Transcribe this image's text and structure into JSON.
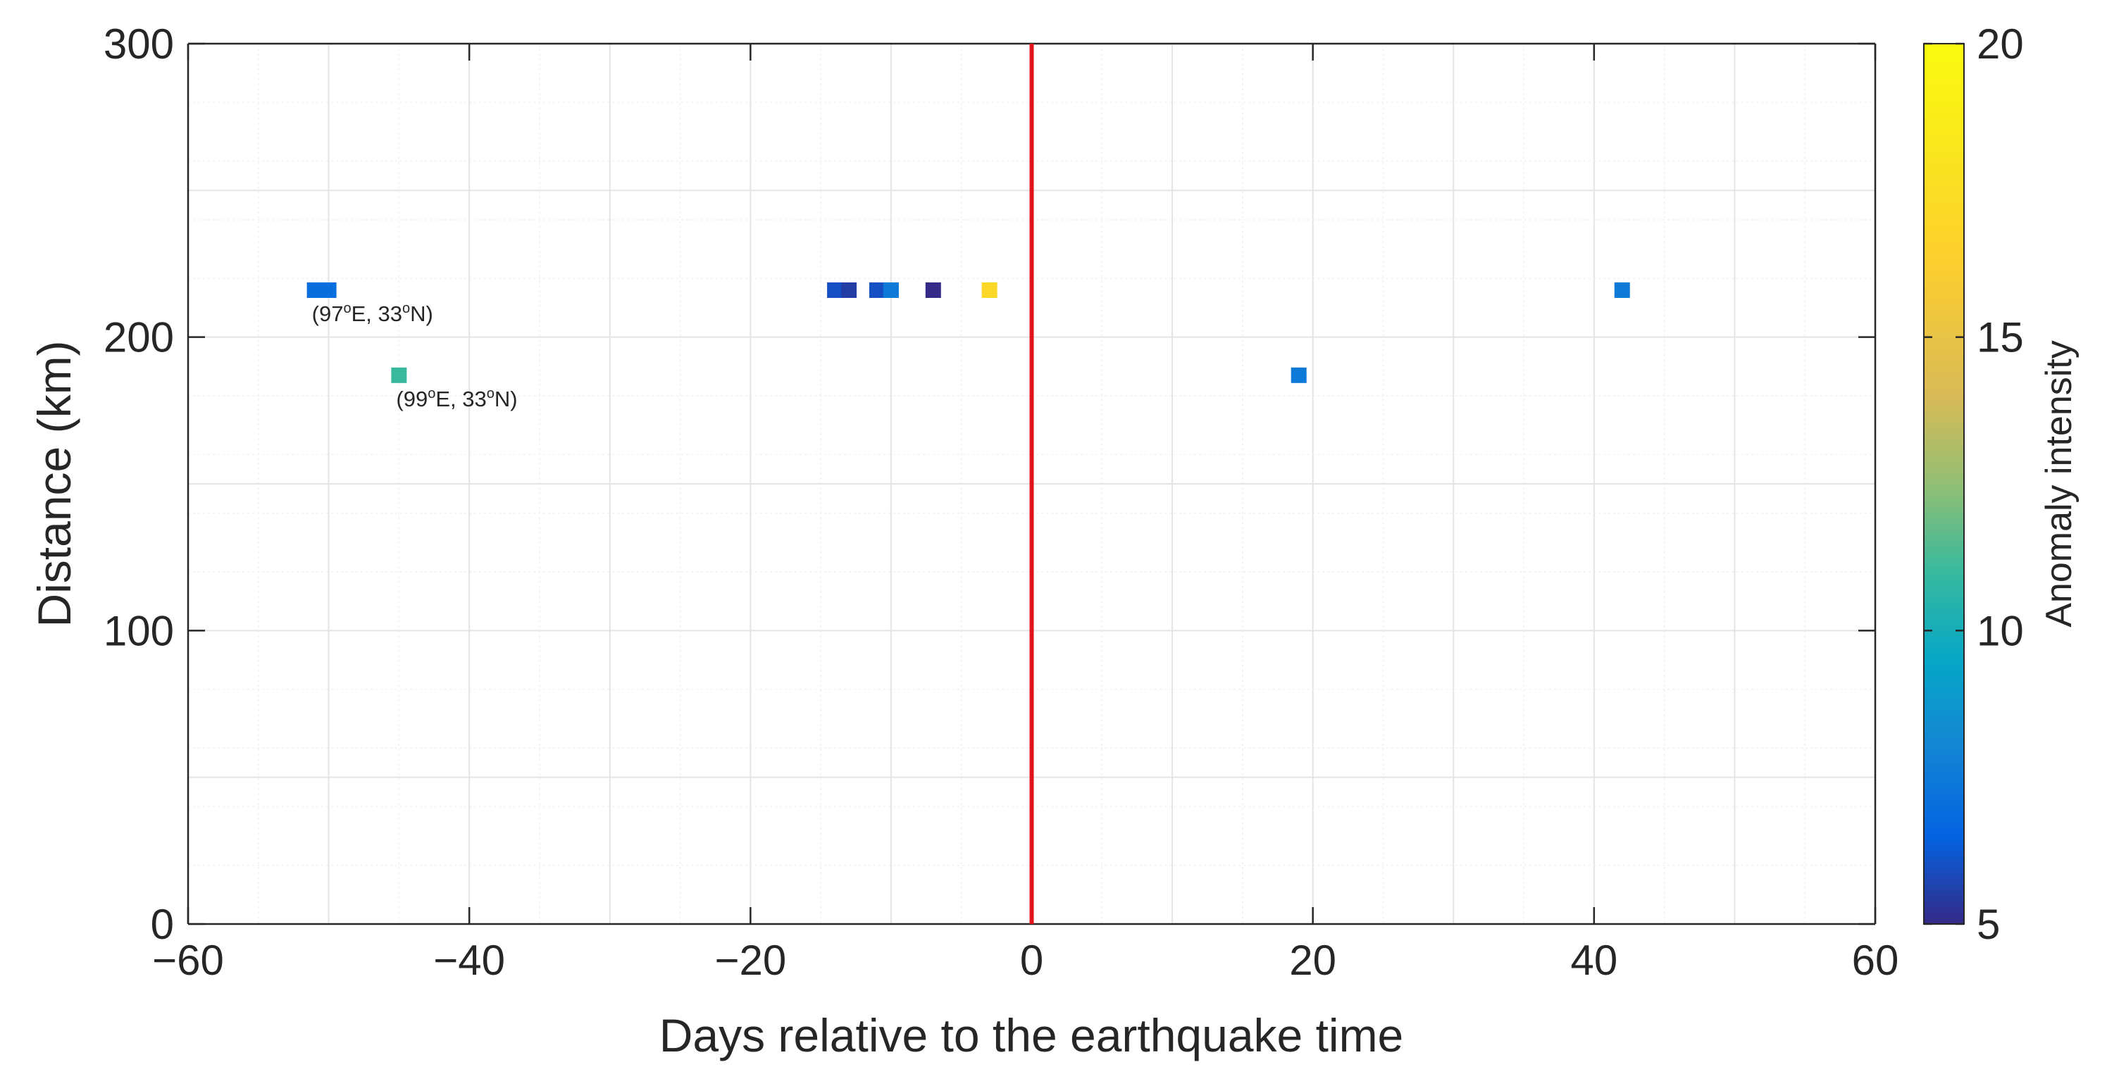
{
  "chart_data": {
    "type": "scatter",
    "title": "",
    "xlabel": "Days relative to the earthquake time",
    "ylabel": "Distance (km)",
    "xlim": [
      -60,
      60
    ],
    "ylim": [
      0,
      300
    ],
    "xticks": [
      -60,
      -40,
      -20,
      0,
      20,
      40,
      60
    ],
    "yticks": [
      0,
      100,
      200,
      300
    ],
    "x_tick_labels": [
      "−60",
      "−40",
      "−20",
      "0",
      "20",
      "40",
      "60"
    ],
    "y_tick_labels": [
      "0",
      "100",
      "200",
      "300"
    ],
    "grid": true,
    "minor_grid": true,
    "colorbar": {
      "label": "Anomaly intensity",
      "range": [
        5,
        20
      ],
      "ticks": [
        5,
        10,
        15,
        20
      ],
      "tick_labels": [
        "5",
        "10",
        "15",
        "20"
      ],
      "colormap": "parula"
    },
    "reference_line": {
      "x": 0,
      "color": "#e0151c"
    },
    "points": [
      {
        "x": -51,
        "y": 216,
        "intensity": 7
      },
      {
        "x": -50,
        "y": 216,
        "intensity": 7
      },
      {
        "x": -45,
        "y": 187,
        "intensity": 11
      },
      {
        "x": -14,
        "y": 216,
        "intensity": 6
      },
      {
        "x": -13,
        "y": 216,
        "intensity": 5.5
      },
      {
        "x": -11,
        "y": 216,
        "intensity": 6
      },
      {
        "x": -10,
        "y": 216,
        "intensity": 7.5
      },
      {
        "x": -7,
        "y": 216,
        "intensity": 5
      },
      {
        "x": -3,
        "y": 216,
        "intensity": 17
      },
      {
        "x": 19,
        "y": 187,
        "intensity": 7.5
      },
      {
        "x": 42,
        "y": 216,
        "intensity": 7.5
      }
    ],
    "annotations": [
      {
        "x": -51,
        "y": 216,
        "parts": [
          "(97",
          "o",
          "E, 33",
          "o",
          "N)"
        ]
      },
      {
        "x": -45,
        "y": 187,
        "parts": [
          "(99",
          "o",
          "E, 33",
          "o",
          "N)"
        ]
      }
    ]
  }
}
